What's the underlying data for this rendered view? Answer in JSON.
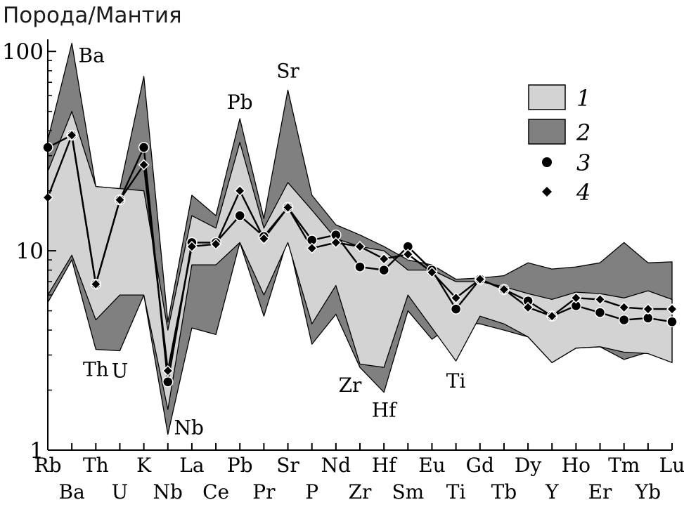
{
  "chart_data": {
    "type": "line",
    "title": "Порода/Мантия",
    "ylabel": "Порода/Мантия",
    "xlabel": "",
    "yscale": "log",
    "ylim": [
      1,
      115
    ],
    "grid": false,
    "legend_position": "top-right",
    "y_ticks": [
      "1",
      "10",
      "100"
    ],
    "y_tick_values": [
      1,
      10,
      100
    ],
    "categories": [
      "Rb",
      "Ba",
      "Th",
      "U",
      "K",
      "Nb",
      "La",
      "Ce",
      "Pb",
      "Pr",
      "Sr",
      "P",
      "Nd",
      "Zr",
      "Hf",
      "Sm",
      "Eu",
      "Ti",
      "Gd",
      "Tb",
      "Dy",
      "Y",
      "Ho",
      "Er",
      "Tm",
      "Yb",
      "Lu"
    ],
    "bands": [
      {
        "name": "2",
        "color": "#808080",
        "upper": [
          36,
          110,
          21,
          20.5,
          75,
          4.4,
          19,
          15,
          46,
          14.5,
          64,
          19,
          13.5,
          12,
          10.5,
          9,
          8.5,
          7.2,
          7.3,
          7.5,
          8.7,
          8.1,
          8.3,
          8.7,
          11,
          8.7,
          8.8
        ],
        "lower": [
          5.5,
          9,
          3.2,
          3.15,
          6,
          1.2,
          4.1,
          3.8,
          11,
          4.7,
          11.5,
          3.4,
          4.8,
          2.6,
          1.95,
          5,
          3.6,
          4.4,
          4.3,
          4,
          3.7,
          2.75,
          3.25,
          3.3,
          2.85,
          3.1,
          2.75
        ]
      },
      {
        "name": "1",
        "color": "#d3d3d3",
        "upper": [
          25,
          50,
          21,
          20.5,
          20,
          4,
          15,
          13,
          35,
          13,
          22,
          16,
          11.5,
          10.5,
          10,
          8,
          8,
          7,
          7,
          6.6,
          6.1,
          5.7,
          6.2,
          6.1,
          5.8,
          6.3,
          5.7
        ],
        "lower": [
          6,
          9.5,
          4.5,
          6,
          6,
          1.6,
          8.5,
          8.5,
          11,
          6,
          11,
          4.3,
          6.7,
          2.7,
          2.6,
          6,
          4.1,
          2.8,
          4.7,
          4.3,
          3.7,
          2.75,
          3.25,
          3.3,
          3.1,
          3.05,
          2.75
        ]
      }
    ],
    "series": [
      {
        "name": "3",
        "marker": "circle",
        "values": [
          33,
          38,
          6.8,
          18,
          33,
          2.2,
          11,
          11,
          15,
          11.8,
          16.5,
          11.3,
          12,
          8.3,
          8,
          10.5,
          8,
          5.1,
          7.2,
          6.4,
          5.6,
          4.7,
          5.3,
          4.9,
          4.5,
          4.6,
          4.4
        ]
      },
      {
        "name": "4",
        "marker": "diamond",
        "values": [
          18.5,
          38,
          6.8,
          18,
          27,
          2.5,
          10.5,
          10.8,
          20,
          11.5,
          16.5,
          10.3,
          11,
          10.5,
          9.1,
          9.6,
          7.8,
          5.8,
          7.2,
          6.4,
          5.2,
          4.7,
          5.8,
          5.7,
          5.2,
          5.1,
          5.1
        ]
      }
    ],
    "annotations": [
      "Ba",
      "Th",
      "U",
      "Nb",
      "Pb",
      "Sr",
      "Zr",
      "Hf",
      "Ti"
    ],
    "legend": [
      "1",
      "2",
      "3",
      "4"
    ]
  }
}
